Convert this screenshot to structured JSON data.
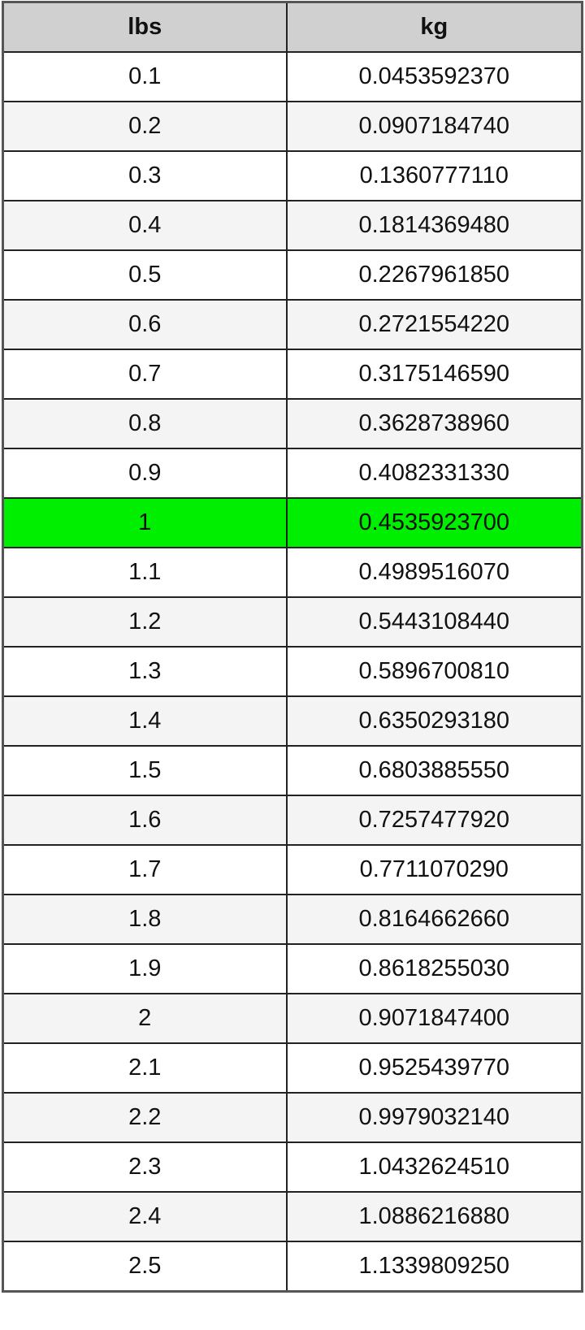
{
  "table": {
    "headers": [
      "lbs",
      "kg"
    ],
    "highlight_color": "#00ee00",
    "highlighted_row": "1",
    "rows": [
      [
        "0.1",
        "0.0453592370"
      ],
      [
        "0.2",
        "0.0907184740"
      ],
      [
        "0.3",
        "0.1360777110"
      ],
      [
        "0.4",
        "0.1814369480"
      ],
      [
        "0.5",
        "0.2267961850"
      ],
      [
        "0.6",
        "0.2721554220"
      ],
      [
        "0.7",
        "0.3175146590"
      ],
      [
        "0.8",
        "0.3628738960"
      ],
      [
        "0.9",
        "0.4082331330"
      ],
      [
        "1",
        "0.4535923700"
      ],
      [
        "1.1",
        "0.4989516070"
      ],
      [
        "1.2",
        "0.5443108440"
      ],
      [
        "1.3",
        "0.5896700810"
      ],
      [
        "1.4",
        "0.6350293180"
      ],
      [
        "1.5",
        "0.6803885550"
      ],
      [
        "1.6",
        "0.7257477920"
      ],
      [
        "1.7",
        "0.7711070290"
      ],
      [
        "1.8",
        "0.8164662660"
      ],
      [
        "1.9",
        "0.8618255030"
      ],
      [
        "2",
        "0.9071847400"
      ],
      [
        "2.1",
        "0.9525439770"
      ],
      [
        "2.2",
        "0.9979032140"
      ],
      [
        "2.3",
        "1.0432624510"
      ],
      [
        "2.4",
        "1.0886216880"
      ],
      [
        "2.5",
        "1.1339809250"
      ]
    ]
  }
}
